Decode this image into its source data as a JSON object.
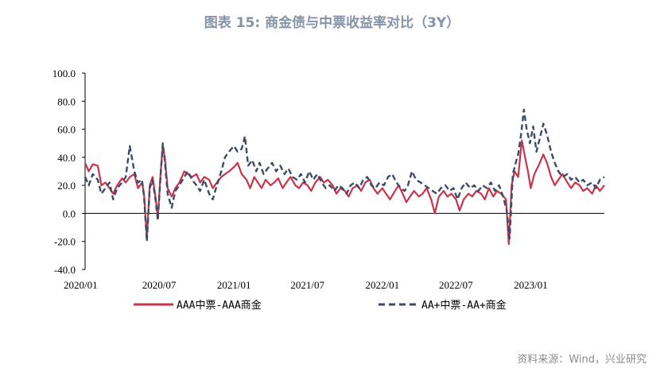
{
  "title": "图表 15: 商金债与中票收益率对比（3Y）",
  "source": "资料来源：Wind，兴业研究",
  "colors": {
    "series1": "#c8344a",
    "series2": "#3d4a68"
  },
  "chart_data": {
    "type": "line",
    "ylim": [
      -40,
      100
    ],
    "yticks": [
      -40,
      -20,
      0,
      20,
      40,
      60,
      80,
      100
    ],
    "ytick_labels": [
      "-40.0",
      "-20.0",
      "0.0",
      "20.0",
      "40.0",
      "60.0",
      "80.0",
      "100.0"
    ],
    "xlim": [
      "2020-01-01",
      "2023-07-01"
    ],
    "xticks": [
      "2020-01-01",
      "2020-07-01",
      "2021-01-01",
      "2021-07-01",
      "2022-01-01",
      "2022-07-01",
      "2023-01-01"
    ],
    "xtick_labels": [
      "2020/01",
      "2020/07",
      "2021/01",
      "2021/07",
      "2022/01",
      "2022/07",
      "2023/01"
    ],
    "legend_position": "bottom",
    "series": [
      {
        "name": "AAA中票-AAA商金",
        "style": "solid",
        "points": [
          [
            "2020-01-01",
            36
          ],
          [
            "2020-01-10",
            30
          ],
          [
            "2020-01-20",
            35
          ],
          [
            "2020-02-01",
            34
          ],
          [
            "2020-02-10",
            20
          ],
          [
            "2020-02-20",
            22
          ],
          [
            "2020-03-01",
            18
          ],
          [
            "2020-03-10",
            14
          ],
          [
            "2020-03-20",
            20
          ],
          [
            "2020-04-01",
            25
          ],
          [
            "2020-04-10",
            22
          ],
          [
            "2020-04-20",
            26
          ],
          [
            "2020-05-01",
            28
          ],
          [
            "2020-05-10",
            18
          ],
          [
            "2020-05-20",
            22
          ],
          [
            "2020-05-25",
            14
          ],
          [
            "2020-06-01",
            -18
          ],
          [
            "2020-06-08",
            20
          ],
          [
            "2020-06-15",
            26
          ],
          [
            "2020-06-22",
            12
          ],
          [
            "2020-06-28",
            -3
          ],
          [
            "2020-07-05",
            30
          ],
          [
            "2020-07-10",
            48
          ],
          [
            "2020-07-15",
            40
          ],
          [
            "2020-07-22",
            18
          ],
          [
            "2020-08-01",
            12
          ],
          [
            "2020-08-10",
            18
          ],
          [
            "2020-08-20",
            22
          ],
          [
            "2020-09-01",
            30
          ],
          [
            "2020-09-10",
            28
          ],
          [
            "2020-09-20",
            26
          ],
          [
            "2020-10-01",
            28
          ],
          [
            "2020-10-10",
            22
          ],
          [
            "2020-10-20",
            26
          ],
          [
            "2020-11-01",
            24
          ],
          [
            "2020-11-10",
            18
          ],
          [
            "2020-11-20",
            22
          ],
          [
            "2020-12-01",
            26
          ],
          [
            "2020-12-10",
            28
          ],
          [
            "2020-12-20",
            30
          ],
          [
            "2021-01-01",
            33
          ],
          [
            "2021-01-10",
            36
          ],
          [
            "2021-01-20",
            28
          ],
          [
            "2021-02-01",
            24
          ],
          [
            "2021-02-10",
            18
          ],
          [
            "2021-02-20",
            26
          ],
          [
            "2021-03-01",
            22
          ],
          [
            "2021-03-10",
            18
          ],
          [
            "2021-03-20",
            24
          ],
          [
            "2021-04-01",
            20
          ],
          [
            "2021-04-10",
            22
          ],
          [
            "2021-04-20",
            25
          ],
          [
            "2021-05-01",
            18
          ],
          [
            "2021-05-10",
            22
          ],
          [
            "2021-05-20",
            26
          ],
          [
            "2021-06-01",
            20
          ],
          [
            "2021-06-10",
            18
          ],
          [
            "2021-06-20",
            22
          ],
          [
            "2021-07-01",
            20
          ],
          [
            "2021-07-10",
            16
          ],
          [
            "2021-07-20",
            22
          ],
          [
            "2021-08-01",
            26
          ],
          [
            "2021-08-10",
            22
          ],
          [
            "2021-08-20",
            24
          ],
          [
            "2021-09-01",
            20
          ],
          [
            "2021-09-10",
            14
          ],
          [
            "2021-09-20",
            18
          ],
          [
            "2021-10-01",
            16
          ],
          [
            "2021-10-10",
            12
          ],
          [
            "2021-10-20",
            18
          ],
          [
            "2021-11-01",
            20
          ],
          [
            "2021-11-10",
            16
          ],
          [
            "2021-11-20",
            22
          ],
          [
            "2021-12-01",
            24
          ],
          [
            "2021-12-10",
            18
          ],
          [
            "2021-12-20",
            14
          ],
          [
            "2022-01-01",
            18
          ],
          [
            "2022-01-10",
            14
          ],
          [
            "2022-01-20",
            10
          ],
          [
            "2022-02-01",
            16
          ],
          [
            "2022-02-10",
            20
          ],
          [
            "2022-02-20",
            14
          ],
          [
            "2022-03-01",
            8
          ],
          [
            "2022-03-10",
            12
          ],
          [
            "2022-03-20",
            16
          ],
          [
            "2022-04-01",
            12
          ],
          [
            "2022-04-10",
            14
          ],
          [
            "2022-04-20",
            18
          ],
          [
            "2022-05-01",
            10
          ],
          [
            "2022-05-10",
            0
          ],
          [
            "2022-05-20",
            12
          ],
          [
            "2022-06-01",
            16
          ],
          [
            "2022-06-10",
            12
          ],
          [
            "2022-06-20",
            14
          ],
          [
            "2022-07-01",
            10
          ],
          [
            "2022-07-10",
            2
          ],
          [
            "2022-07-20",
            10
          ],
          [
            "2022-08-01",
            14
          ],
          [
            "2022-08-10",
            12
          ],
          [
            "2022-08-20",
            16
          ],
          [
            "2022-09-01",
            14
          ],
          [
            "2022-09-10",
            10
          ],
          [
            "2022-09-20",
            18
          ],
          [
            "2022-10-01",
            12
          ],
          [
            "2022-10-10",
            16
          ],
          [
            "2022-10-20",
            14
          ],
          [
            "2022-11-01",
            10
          ],
          [
            "2022-11-08",
            -22
          ],
          [
            "2022-11-15",
            20
          ],
          [
            "2022-11-22",
            30
          ],
          [
            "2022-12-01",
            26
          ],
          [
            "2022-12-10",
            52
          ],
          [
            "2022-12-18",
            40
          ],
          [
            "2022-12-25",
            30
          ],
          [
            "2023-01-01",
            18
          ],
          [
            "2023-01-10",
            28
          ],
          [
            "2023-01-20",
            34
          ],
          [
            "2023-02-01",
            42
          ],
          [
            "2023-02-10",
            36
          ],
          [
            "2023-02-20",
            26
          ],
          [
            "2023-03-01",
            20
          ],
          [
            "2023-03-10",
            24
          ],
          [
            "2023-03-20",
            28
          ],
          [
            "2023-04-01",
            22
          ],
          [
            "2023-04-10",
            18
          ],
          [
            "2023-04-20",
            22
          ],
          [
            "2023-05-01",
            20
          ],
          [
            "2023-05-10",
            16
          ],
          [
            "2023-05-20",
            18
          ],
          [
            "2023-06-01",
            14
          ],
          [
            "2023-06-10",
            20
          ],
          [
            "2023-06-20",
            16
          ],
          [
            "2023-07-01",
            20
          ]
        ]
      },
      {
        "name": "AA+中票-AA+商金",
        "style": "dashed",
        "points": [
          [
            "2020-01-01",
            26
          ],
          [
            "2020-01-10",
            20
          ],
          [
            "2020-01-20",
            28
          ],
          [
            "2020-02-01",
            24
          ],
          [
            "2020-02-10",
            14
          ],
          [
            "2020-02-20",
            18
          ],
          [
            "2020-03-01",
            22
          ],
          [
            "2020-03-10",
            10
          ],
          [
            "2020-03-20",
            18
          ],
          [
            "2020-04-01",
            22
          ],
          [
            "2020-04-10",
            26
          ],
          [
            "2020-04-20",
            48
          ],
          [
            "2020-05-01",
            30
          ],
          [
            "2020-05-10",
            22
          ],
          [
            "2020-05-20",
            24
          ],
          [
            "2020-05-25",
            12
          ],
          [
            "2020-06-01",
            -20
          ],
          [
            "2020-06-08",
            18
          ],
          [
            "2020-06-15",
            24
          ],
          [
            "2020-06-22",
            10
          ],
          [
            "2020-06-28",
            -5
          ],
          [
            "2020-07-05",
            28
          ],
          [
            "2020-07-10",
            50
          ],
          [
            "2020-07-15",
            38
          ],
          [
            "2020-07-22",
            14
          ],
          [
            "2020-08-01",
            4
          ],
          [
            "2020-08-10",
            16
          ],
          [
            "2020-08-20",
            20
          ],
          [
            "2020-09-01",
            26
          ],
          [
            "2020-09-10",
            30
          ],
          [
            "2020-09-20",
            24
          ],
          [
            "2020-10-01",
            20
          ],
          [
            "2020-10-10",
            16
          ],
          [
            "2020-10-20",
            24
          ],
          [
            "2020-11-01",
            14
          ],
          [
            "2020-11-10",
            10
          ],
          [
            "2020-11-20",
            20
          ],
          [
            "2020-12-01",
            30
          ],
          [
            "2020-12-10",
            40
          ],
          [
            "2020-12-20",
            44
          ],
          [
            "2021-01-01",
            48
          ],
          [
            "2021-01-10",
            44
          ],
          [
            "2021-01-20",
            46
          ],
          [
            "2021-01-28",
            55
          ],
          [
            "2021-02-05",
            34
          ],
          [
            "2021-02-15",
            38
          ],
          [
            "2021-02-25",
            30
          ],
          [
            "2021-03-05",
            36
          ],
          [
            "2021-03-15",
            28
          ],
          [
            "2021-03-25",
            32
          ],
          [
            "2021-04-05",
            36
          ],
          [
            "2021-04-15",
            30
          ],
          [
            "2021-04-25",
            34
          ],
          [
            "2021-05-05",
            28
          ],
          [
            "2021-05-15",
            32
          ],
          [
            "2021-05-25",
            26
          ],
          [
            "2021-06-05",
            24
          ],
          [
            "2021-06-15",
            28
          ],
          [
            "2021-06-25",
            22
          ],
          [
            "2021-07-05",
            30
          ],
          [
            "2021-07-15",
            24
          ],
          [
            "2021-07-25",
            28
          ],
          [
            "2021-08-05",
            22
          ],
          [
            "2021-08-15",
            18
          ],
          [
            "2021-08-25",
            20
          ],
          [
            "2021-09-05",
            16
          ],
          [
            "2021-09-15",
            20
          ],
          [
            "2021-09-25",
            18
          ],
          [
            "2021-10-05",
            14
          ],
          [
            "2021-10-15",
            20
          ],
          [
            "2021-10-25",
            22
          ],
          [
            "2021-11-05",
            18
          ],
          [
            "2021-11-15",
            24
          ],
          [
            "2021-11-25",
            26
          ],
          [
            "2021-12-05",
            20
          ],
          [
            "2021-12-15",
            18
          ],
          [
            "2021-12-25",
            22
          ],
          [
            "2022-01-05",
            20
          ],
          [
            "2022-01-15",
            26
          ],
          [
            "2022-01-25",
            28
          ],
          [
            "2022-02-05",
            22
          ],
          [
            "2022-02-15",
            18
          ],
          [
            "2022-02-25",
            16
          ],
          [
            "2022-03-05",
            20
          ],
          [
            "2022-03-15",
            30
          ],
          [
            "2022-03-25",
            24
          ],
          [
            "2022-04-05",
            22
          ],
          [
            "2022-04-15",
            20
          ],
          [
            "2022-04-25",
            18
          ],
          [
            "2022-05-05",
            16
          ],
          [
            "2022-05-15",
            14
          ],
          [
            "2022-05-25",
            18
          ],
          [
            "2022-06-05",
            20
          ],
          [
            "2022-06-15",
            16
          ],
          [
            "2022-06-25",
            18
          ],
          [
            "2022-07-05",
            10
          ],
          [
            "2022-07-15",
            18
          ],
          [
            "2022-07-25",
            22
          ],
          [
            "2022-08-05",
            18
          ],
          [
            "2022-08-15",
            20
          ],
          [
            "2022-08-25",
            16
          ],
          [
            "2022-09-05",
            20
          ],
          [
            "2022-09-15",
            18
          ],
          [
            "2022-09-25",
            22
          ],
          [
            "2022-10-05",
            16
          ],
          [
            "2022-10-15",
            20
          ],
          [
            "2022-10-25",
            12
          ],
          [
            "2022-11-03",
            2
          ],
          [
            "2022-11-10",
            -18
          ],
          [
            "2022-11-18",
            28
          ],
          [
            "2022-11-25",
            36
          ],
          [
            "2022-12-01",
            42
          ],
          [
            "2022-12-08",
            56
          ],
          [
            "2022-12-15",
            74
          ],
          [
            "2022-12-22",
            60
          ],
          [
            "2022-12-30",
            50
          ],
          [
            "2023-01-07",
            62
          ],
          [
            "2023-01-15",
            44
          ],
          [
            "2023-01-22",
            52
          ],
          [
            "2023-02-01",
            64
          ],
          [
            "2023-02-10",
            56
          ],
          [
            "2023-02-20",
            44
          ],
          [
            "2023-03-01",
            36
          ],
          [
            "2023-03-10",
            30
          ],
          [
            "2023-03-20",
            26
          ],
          [
            "2023-04-01",
            28
          ],
          [
            "2023-04-10",
            24
          ],
          [
            "2023-04-20",
            26
          ],
          [
            "2023-05-01",
            22
          ],
          [
            "2023-05-10",
            24
          ],
          [
            "2023-05-20",
            20
          ],
          [
            "2023-06-01",
            22
          ],
          [
            "2023-06-10",
            18
          ],
          [
            "2023-06-20",
            24
          ],
          [
            "2023-07-01",
            26
          ]
        ]
      }
    ]
  }
}
